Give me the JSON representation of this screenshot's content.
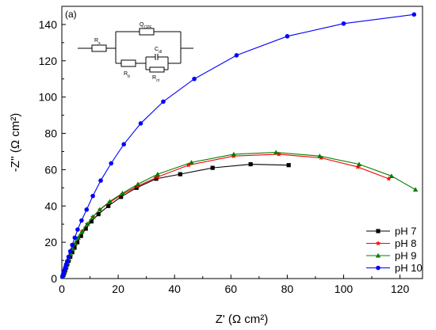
{
  "chart_data": {
    "type": "line",
    "panel_label": "(a)",
    "xlabel": "Z' (Ω cm²)",
    "ylabel": "-Z'' (Ω cm²)",
    "xlim": [
      0,
      128
    ],
    "ylim": [
      0,
      150
    ],
    "xticks": [
      0,
      20,
      40,
      60,
      80,
      100,
      120
    ],
    "yticks": [
      0,
      20,
      40,
      60,
      80,
      100,
      120,
      140
    ],
    "grid": false,
    "legend_position": "bottom-right",
    "series": [
      {
        "name": "pH 7",
        "color": "#000000",
        "marker": "square",
        "x": [
          0.3,
          0.6,
          0.9,
          1.2,
          1.5,
          1.9,
          2.4,
          3.0,
          3.7,
          4.5,
          5.5,
          6.8,
          8.5,
          10.5,
          13.0,
          16.5,
          21.0,
          26.5,
          33.5,
          42.0,
          53.5,
          67.0,
          80.5
        ],
        "y": [
          1.0,
          2.0,
          3.2,
          4.5,
          6.0,
          7.8,
          9.8,
          12.0,
          14.5,
          17.0,
          20.0,
          23.5,
          27.5,
          31.5,
          35.5,
          40.0,
          45.0,
          50.0,
          55.0,
          57.5,
          61.0,
          63.0,
          62.5
        ]
      },
      {
        "name": "pH 8",
        "color": "#ff0000",
        "marker": "star",
        "x": [
          0.3,
          0.6,
          0.9,
          1.2,
          1.6,
          2.0,
          2.5,
          3.1,
          3.8,
          4.7,
          5.8,
          7.2,
          9.0,
          11.0,
          13.5,
          17.0,
          21.5,
          27.0,
          34.0,
          45.0,
          61.0,
          77.0,
          92.0,
          105.0,
          116.0
        ],
        "y": [
          1.0,
          2.2,
          3.5,
          5.0,
          6.8,
          8.8,
          11.0,
          13.5,
          16.2,
          19.2,
          22.5,
          26.0,
          30.0,
          34.0,
          38.0,
          42.0,
          46.5,
          51.0,
          56.0,
          62.5,
          67.5,
          68.5,
          66.5,
          61.5,
          55.0
        ]
      },
      {
        "name": "pH 9",
        "color": "#008000",
        "marker": "triangle",
        "x": [
          0.3,
          0.6,
          0.9,
          1.2,
          1.6,
          2.0,
          2.5,
          3.1,
          3.8,
          4.7,
          5.8,
          7.2,
          9.0,
          11.0,
          13.5,
          17.0,
          21.5,
          27.0,
          34.0,
          46.0,
          61.0,
          76.0,
          91.5,
          105.5,
          117.0,
          125.5
        ],
        "y": [
          1.0,
          2.2,
          3.5,
          5.0,
          6.8,
          8.8,
          11.0,
          13.5,
          16.2,
          19.2,
          22.5,
          26.0,
          30.0,
          34.0,
          38.0,
          42.5,
          47.0,
          52.0,
          57.5,
          64.0,
          68.5,
          69.5,
          67.5,
          63.0,
          56.5,
          49.0
        ]
      },
      {
        "name": "pH 10",
        "color": "#0000ff",
        "marker": "circle",
        "x": [
          0.2,
          0.4,
          0.6,
          0.9,
          1.2,
          1.5,
          1.9,
          2.4,
          3.0,
          3.7,
          4.6,
          5.6,
          7.0,
          8.8,
          11.0,
          13.8,
          17.5,
          22.0,
          28.0,
          36.0,
          47.0,
          62.0,
          80.0,
          100.0,
          125.0
        ],
        "y": [
          1.0,
          2.0,
          3.2,
          4.6,
          6.0,
          7.7,
          9.5,
          12.0,
          15.0,
          18.5,
          22.5,
          27.0,
          32.0,
          38.0,
          45.5,
          54.0,
          63.5,
          74.0,
          85.5,
          97.5,
          110.0,
          123.0,
          133.5,
          140.5,
          145.5
        ]
      }
    ]
  },
  "circuit": {
    "labels": {
      "rs": "R",
      "rs_sub": "s",
      "qcpe": "Q",
      "qcpe_sub": "CPE",
      "rb": "R",
      "rb_sub": "b",
      "cdl": "C",
      "cdl_sub": "dl",
      "rct": "R",
      "rct_sub": "ct"
    }
  }
}
